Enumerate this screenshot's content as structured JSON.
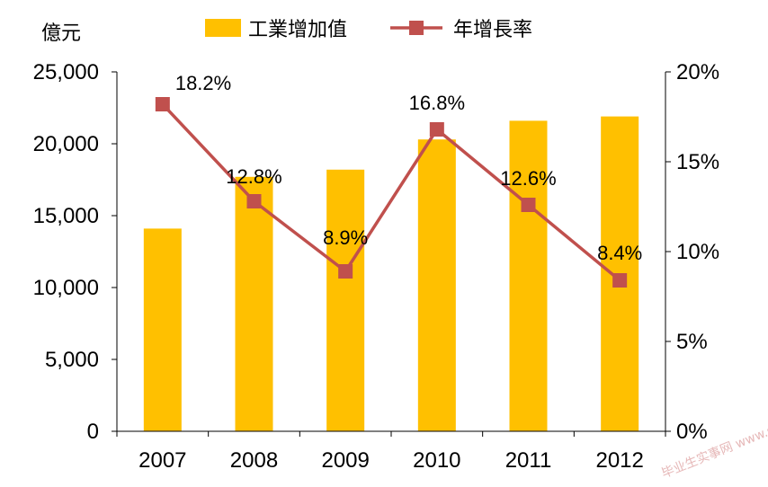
{
  "chart_data": {
    "type": "bar+line",
    "categories": [
      "2007",
      "2008",
      "2009",
      "2010",
      "2011",
      "2012"
    ],
    "series": [
      {
        "name": "工業增加值",
        "type": "bar",
        "axis": "left",
        "color": "#FFC000",
        "values": [
          14100,
          17700,
          18200,
          20300,
          21600,
          21900
        ]
      },
      {
        "name": "年增長率",
        "type": "line",
        "axis": "right",
        "color": "#C0504D",
        "values": [
          18.2,
          12.8,
          8.9,
          16.8,
          12.6,
          8.4
        ],
        "labels": [
          "18.2%",
          "12.8%",
          "8.9%",
          "16.8%",
          "12.6%",
          "8.4%"
        ]
      }
    ],
    "left_axis": {
      "unit": "億元",
      "ylim": [
        0,
        25000
      ],
      "ticks": [
        0,
        5000,
        10000,
        15000,
        20000,
        25000
      ],
      "tick_labels": [
        "0",
        "5,000",
        "10,000",
        "15,000",
        "20,000",
        "25,000"
      ]
    },
    "right_axis": {
      "ylim": [
        0,
        20
      ],
      "ticks": [
        0,
        5,
        10,
        15,
        20
      ],
      "tick_labels": [
        "0%",
        "5%",
        "10%",
        "15%",
        "20%"
      ]
    },
    "grid": false,
    "legend": "top"
  },
  "watermark": "毕业生实事网 www.sbvv.com"
}
